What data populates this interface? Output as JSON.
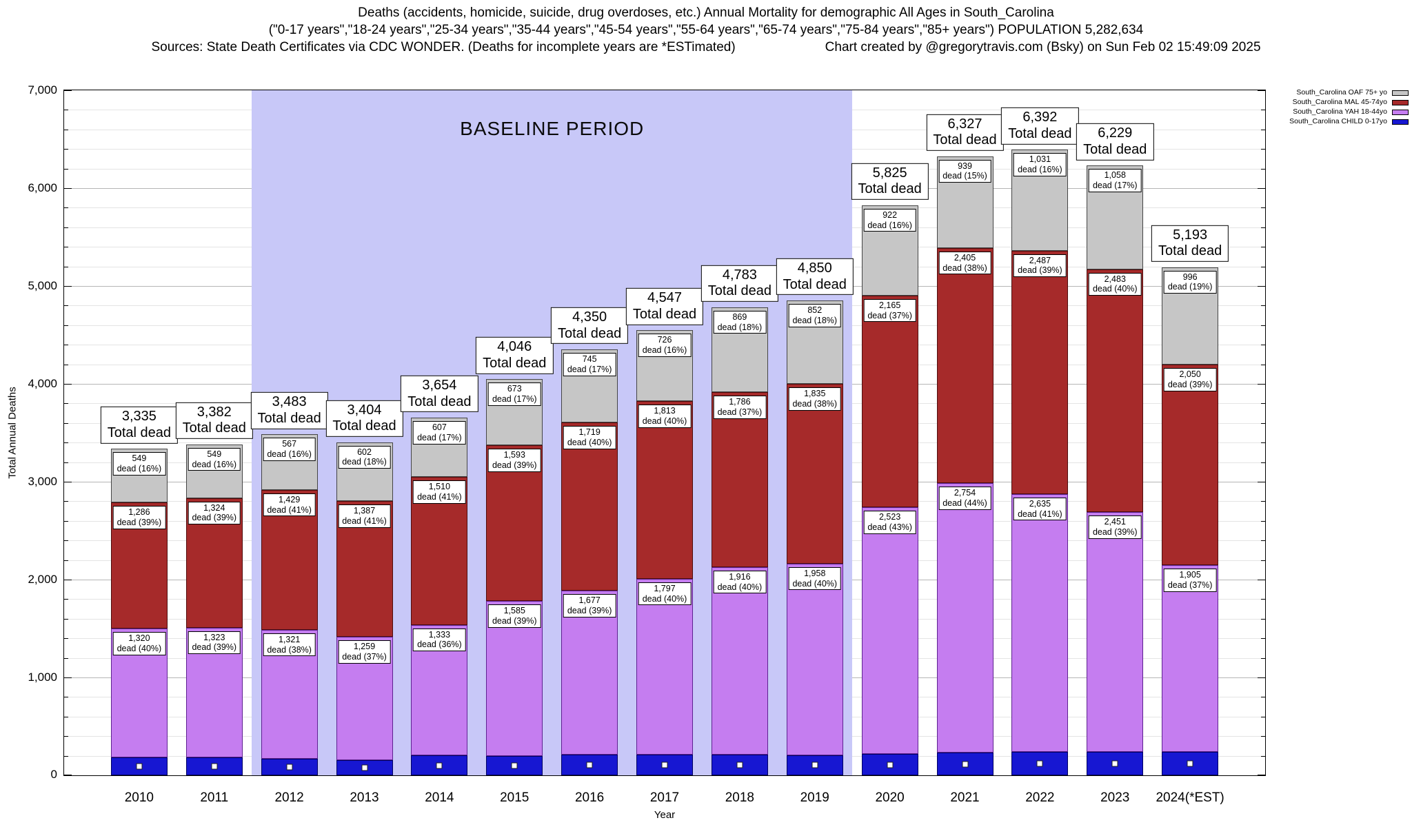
{
  "header": {
    "title_line1": "Deaths (accidents, homicide, suicide, drug overdoses, etc.) Annual Mortality for demographic All Ages in South_Carolina",
    "title_line2": "(\"0-17 years\",\"18-24 years\",\"25-34 years\",\"35-44 years\",\"45-54 years\",\"55-64 years\",\"65-74 years\",\"75-84 years\",\"85+ years\") POPULATION 5,282,634",
    "sources": "Sources: State Death Certificates via CDC WONDER. (Deaths for incomplete years are *ESTimated)",
    "credit": "Chart created by @gregorytravis.com (Bsky) on Sun Feb 02 15:49:09 2025"
  },
  "chart_data": {
    "type": "bar",
    "stacked": true,
    "xlabel": "Year",
    "ylabel": "Total Annual Deaths",
    "ylim": [
      0,
      7000
    ],
    "ytick_step": 1000,
    "minor_step": 200,
    "ytick_labels": [
      "0",
      "1,000",
      "2,000",
      "3,000",
      "4,000",
      "5,000",
      "6,000",
      "7,000"
    ],
    "categories": [
      "2010",
      "2011",
      "2012",
      "2013",
      "2014",
      "2015",
      "2016",
      "2017",
      "2018",
      "2019",
      "2020",
      "2021",
      "2022",
      "2023",
      "2024(*EST)"
    ],
    "totals": [
      3335,
      3382,
      3483,
      3404,
      3654,
      4046,
      4350,
      4547,
      4783,
      4850,
      5825,
      6327,
      6392,
      6229,
      5193
    ],
    "totals_display": [
      "3,335",
      "3,382",
      "3,483",
      "3,404",
      "3,654",
      "4,046",
      "4,350",
      "4,547",
      "4,783",
      "4,850",
      "5,825",
      "6,327",
      "6,392",
      "6,229",
      "5,193"
    ],
    "total_label_suffix": "Total dead",
    "baseline_region": {
      "label": "BASELINE PERIOD",
      "from": "2012",
      "to": "2019",
      "color": "#c8c8f8"
    },
    "series": [
      {
        "name": "South_Carolina CHILD 0-17yo",
        "color": "#1717d2",
        "border": "#000060",
        "marker": "white-square",
        "values": [
          180,
          186,
          166,
          156,
          204,
          195,
          209,
          211,
          212,
          205,
          215,
          229,
          239,
          237,
          242
        ]
      },
      {
        "name": "South_Carolina YAH 18-44yo",
        "color": "#c57df0",
        "border": "#5e2190",
        "values": [
          1320,
          1323,
          1321,
          1259,
          1333,
          1585,
          1677,
          1797,
          1916,
          1958,
          2523,
          2754,
          2635,
          2451,
          1905
        ],
        "labels": [
          "1,320",
          "1,323",
          "1,321",
          "1,259",
          "1,333",
          "1,585",
          "1,677",
          "1,797",
          "1,916",
          "1,958",
          "2,523",
          "2,754",
          "2,635",
          "2,451",
          "1,905"
        ],
        "sublabels": [
          "dead (40%)",
          "dead (39%)",
          "dead (38%)",
          "dead (37%)",
          "dead (36%)",
          "dead (39%)",
          "dead (39%)",
          "dead (40%)",
          "dead (40%)",
          "dead (40%)",
          "dead (43%)",
          "dead (44%)",
          "dead (41%)",
          "dead (39%)",
          "dead (37%)"
        ]
      },
      {
        "name": "South_Carolina MAL 45-74yo",
        "color": "#a62a2a",
        "border": "#4e0d0d",
        "values": [
          1286,
          1324,
          1429,
          1387,
          1510,
          1593,
          1719,
          1813,
          1786,
          1835,
          2165,
          2405,
          2487,
          2483,
          2050
        ],
        "labels": [
          "1,286",
          "1,324",
          "1,429",
          "1,387",
          "1,510",
          "1,593",
          "1,719",
          "1,813",
          "1,786",
          "1,835",
          "2,165",
          "2,405",
          "2,487",
          "2,483",
          "2,050"
        ],
        "sublabels": [
          "dead (39%)",
          "dead (39%)",
          "dead (41%)",
          "dead (41%)",
          "dead (41%)",
          "dead (39%)",
          "dead (40%)",
          "dead (40%)",
          "dead (37%)",
          "dead (38%)",
          "dead (37%)",
          "dead (38%)",
          "dead (39%)",
          "dead (40%)",
          "dead (39%)"
        ]
      },
      {
        "name": "South_Carolina OAF 75+ yo",
        "color": "#c6c6c6",
        "border": "#444444",
        "values": [
          549,
          549,
          567,
          602,
          607,
          673,
          745,
          726,
          869,
          852,
          922,
          939,
          1031,
          1058,
          996
        ],
        "labels": [
          "549",
          "549",
          "567",
          "602",
          "607",
          "673",
          "745",
          "726",
          "869",
          "852",
          "922",
          "939",
          "1,031",
          "1,058",
          "996"
        ],
        "sublabels": [
          "dead (16%)",
          "dead (16%)",
          "dead (16%)",
          "dead (18%)",
          "dead (17%)",
          "dead (17%)",
          "dead (17%)",
          "dead (16%)",
          "dead (18%)",
          "dead (18%)",
          "dead (16%)",
          "dead (15%)",
          "dead (16%)",
          "dead (17%)",
          "dead (19%)"
        ]
      }
    ],
    "legend": [
      {
        "label": "South_Carolina OAF 75+ yo",
        "color": "#c6c6c6"
      },
      {
        "label": "South_Carolina MAL 45-74yo",
        "color": "#a62a2a"
      },
      {
        "label": "South_Carolina YAH 18-44yo",
        "color": "#c57df0"
      },
      {
        "label": "South_Carolina CHILD 0-17yo",
        "color": "#1717d2"
      }
    ]
  }
}
